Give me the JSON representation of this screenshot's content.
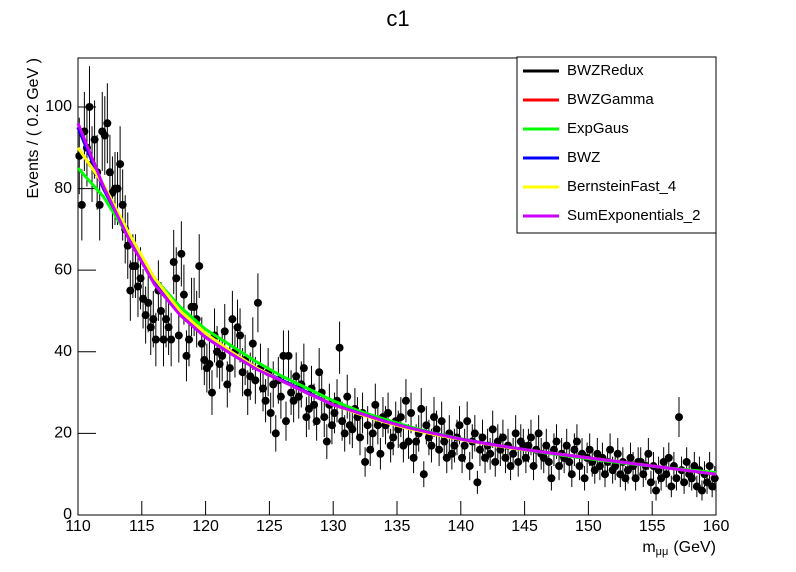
{
  "chart_data": {
    "type": "scatter",
    "title": "c1",
    "y_label": "Events / ( 0.2 GeV )",
    "x_label": {
      "main": "m",
      "sub": "μμ",
      "unit": "(GeV)"
    },
    "xlim": [
      110,
      160
    ],
    "xticks": [
      110,
      115,
      120,
      125,
      130,
      135,
      140,
      145,
      150,
      155,
      160
    ],
    "ylim": [
      0,
      112
    ],
    "yticks": [
      0,
      20,
      40,
      60,
      80,
      100
    ],
    "error_bars": "poisson",
    "marker_color": "#000000",
    "legend": "top-right",
    "points": {
      "x": [
        110.1,
        110.3,
        110.5,
        110.7,
        110.9,
        111.1,
        111.3,
        111.5,
        111.7,
        111.9,
        112.1,
        112.3,
        112.5,
        112.7,
        112.9,
        113.1,
        113.3,
        113.5,
        113.7,
        113.9,
        114.1,
        114.3,
        114.5,
        114.7,
        114.9,
        115.1,
        115.3,
        115.5,
        115.7,
        115.9,
        116.1,
        116.3,
        116.5,
        116.7,
        116.9,
        117.1,
        117.3,
        117.5,
        117.7,
        117.9,
        118.1,
        118.3,
        118.5,
        118.7,
        118.9,
        119.1,
        119.3,
        119.5,
        119.7,
        119.9,
        120.1,
        120.3,
        120.5,
        120.7,
        120.9,
        121.1,
        121.3,
        121.5,
        121.7,
        121.9,
        122.1,
        122.3,
        122.5,
        122.7,
        122.9,
        123.1,
        123.3,
        123.5,
        123.7,
        123.9,
        124.1,
        124.3,
        124.5,
        124.7,
        124.9,
        125.1,
        125.3,
        125.5,
        125.7,
        125.9,
        126.1,
        126.3,
        126.5,
        126.7,
        126.9,
        127.1,
        127.3,
        127.5,
        127.7,
        127.9,
        128.1,
        128.3,
        128.5,
        128.7,
        128.9,
        129.1,
        129.3,
        129.5,
        129.7,
        129.9,
        130.1,
        130.3,
        130.5,
        130.7,
        130.9,
        131.1,
        131.3,
        131.5,
        131.7,
        131.9,
        132.1,
        132.3,
        132.5,
        132.7,
        132.9,
        133.1,
        133.3,
        133.5,
        133.7,
        133.9,
        134.1,
        134.3,
        134.5,
        134.7,
        134.9,
        135.1,
        135.3,
        135.5,
        135.7,
        135.9,
        136.1,
        136.3,
        136.5,
        136.7,
        136.9,
        137.1,
        137.3,
        137.5,
        137.7,
        137.9,
        138.1,
        138.3,
        138.5,
        138.7,
        138.9,
        139.1,
        139.3,
        139.5,
        139.7,
        139.9,
        140.1,
        140.3,
        140.5,
        140.7,
        140.9,
        141.1,
        141.3,
        141.5,
        141.7,
        141.9,
        142.1,
        142.3,
        142.5,
        142.7,
        142.9,
        143.1,
        143.3,
        143.5,
        143.7,
        143.9,
        144.1,
        144.3,
        144.5,
        144.7,
        144.9,
        145.1,
        145.3,
        145.5,
        145.7,
        145.9,
        146.1,
        146.3,
        146.5,
        146.7,
        146.9,
        147.1,
        147.3,
        147.5,
        147.7,
        147.9,
        148.1,
        148.3,
        148.5,
        148.7,
        148.9,
        149.1,
        149.3,
        149.5,
        149.7,
        149.9,
        150.1,
        150.3,
        150.5,
        150.7,
        150.9,
        151.1,
        151.3,
        151.5,
        151.7,
        151.9,
        152.1,
        152.3,
        152.5,
        152.7,
        152.9,
        153.1,
        153.3,
        153.5,
        153.7,
        153.9,
        154.1,
        154.3,
        154.5,
        154.7,
        154.9,
        155.1,
        155.3,
        155.5,
        155.7,
        155.9,
        156.1,
        156.3,
        156.5,
        156.7,
        156.9,
        157.1,
        157.3,
        157.5,
        157.7,
        157.9,
        158.1,
        158.3,
        158.5,
        158.7,
        158.9,
        159.1,
        159.3,
        159.5,
        159.7,
        159.9
      ],
      "values": [
        88,
        76,
        94,
        90,
        100,
        86,
        92,
        84,
        76,
        94,
        93,
        96,
        84,
        79,
        80,
        80,
        86,
        76,
        70,
        66,
        55,
        61,
        61,
        56,
        58,
        53,
        49,
        52,
        46,
        48,
        43,
        55,
        50,
        43,
        48,
        46,
        43,
        62,
        58,
        44,
        64,
        54,
        39,
        43,
        51,
        51,
        48,
        61,
        42,
        38,
        36,
        37,
        30,
        44,
        40,
        37,
        39,
        45,
        32,
        36,
        48,
        40,
        46,
        44,
        35,
        38,
        30,
        34,
        42,
        33,
        52,
        36,
        31,
        28,
        35,
        25,
        32,
        20,
        33,
        29,
        39,
        23,
        39,
        30,
        28,
        34,
        29,
        32,
        36,
        24,
        26,
        31,
        27,
        23,
        35,
        30,
        24,
        18,
        27,
        22,
        25,
        28,
        41,
        23,
        20,
        29,
        22,
        21,
        26,
        24,
        19,
        25,
        13,
        22,
        16,
        20,
        27,
        22,
        15,
        24,
        22,
        25,
        17,
        19,
        23,
        21,
        24,
        17,
        28,
        18,
        25,
        14,
        18,
        20,
        26,
        10,
        22,
        19,
        17,
        24,
        21,
        16,
        23,
        18,
        14,
        20,
        15,
        17,
        19,
        22,
        14,
        17,
        23,
        12,
        18,
        20,
        8,
        16,
        19,
        14,
        17,
        15,
        21,
        13,
        18,
        16,
        19,
        14,
        17,
        12,
        15,
        20,
        13,
        18,
        17,
        14,
        17,
        19,
        12,
        16,
        20,
        15,
        14,
        17,
        13,
        9,
        16,
        18,
        12,
        15,
        14,
        17,
        13,
        10,
        16,
        18,
        12,
        15,
        9,
        14,
        16,
        13,
        11,
        15,
        12,
        14,
        10,
        13,
        16,
        11,
        12,
        15,
        10,
        13,
        9,
        11,
        14,
        12,
        9,
        13,
        13,
        10,
        12,
        15,
        8,
        12,
        6,
        11,
        9,
        13,
        10,
        14,
        7,
        12,
        9,
        24,
        11,
        8,
        13,
        10,
        9,
        12,
        7,
        11,
        6,
        10,
        8,
        12,
        7,
        9
      ]
    },
    "curve_x": [
      110,
      112,
      114,
      116,
      118,
      120,
      122,
      124,
      126,
      128,
      130,
      132,
      134,
      136,
      138,
      140,
      142,
      144,
      146,
      148,
      150,
      152,
      154,
      156,
      158,
      160
    ],
    "series": [
      {
        "name": "BWZRedux",
        "color": "#000000",
        "values": [
          95,
          80,
          68,
          57,
          49.5,
          44,
          40,
          36,
          33,
          30,
          27,
          25,
          23,
          21.3,
          19.9,
          18.6,
          17.5,
          16.5,
          15.6,
          14.8,
          14,
          13.2,
          12.4,
          11.6,
          10.8,
          10
        ]
      },
      {
        "name": "BWZGamma",
        "color": "#ff0000",
        "values": [
          95,
          80,
          68,
          57,
          49.5,
          44,
          40,
          36,
          33,
          30,
          27,
          25,
          23,
          21.3,
          19.9,
          18.6,
          17.5,
          16.5,
          15.6,
          14.8,
          14,
          13.2,
          12.4,
          11.6,
          10.8,
          10
        ]
      },
      {
        "name": "ExpGaus",
        "color": "#00ff00",
        "values": [
          85,
          78,
          68,
          58,
          51,
          45.5,
          41.5,
          37.5,
          34,
          31,
          28,
          25.5,
          23.5,
          21.6,
          20,
          18.7,
          17.5,
          16.4,
          15.5,
          14.6,
          13.8,
          13,
          12.3,
          11.6,
          11,
          10.4
        ]
      },
      {
        "name": "BWZ",
        "color": "#0000ff",
        "values": [
          95,
          80,
          68,
          57,
          49.5,
          44,
          40,
          36,
          33,
          30,
          27,
          25,
          23,
          21.3,
          19.9,
          18.6,
          17.5,
          16.5,
          15.6,
          14.8,
          14,
          13.2,
          12.4,
          11.6,
          10.8,
          10
        ]
      },
      {
        "name": "BernsteinFast_4",
        "color": "#ffff00",
        "values": [
          90,
          81,
          69,
          58,
          50,
          44.5,
          40,
          36,
          32.8,
          29.8,
          27,
          24.8,
          22.8,
          21.1,
          19.7,
          18.5,
          17.4,
          16.4,
          15.6,
          14.8,
          14,
          13.2,
          12.4,
          11.6,
          10.8,
          10
        ]
      },
      {
        "name": "SumExponentials_2",
        "color": "#cc00ff",
        "values": [
          96,
          80.5,
          67.5,
          56.5,
          49,
          43.5,
          39.5,
          35.7,
          32.8,
          29.8,
          27,
          25,
          23,
          21.3,
          19.9,
          18.6,
          17.5,
          16.5,
          15.6,
          14.8,
          14,
          13.2,
          12.4,
          11.6,
          10.8,
          10
        ]
      }
    ]
  }
}
